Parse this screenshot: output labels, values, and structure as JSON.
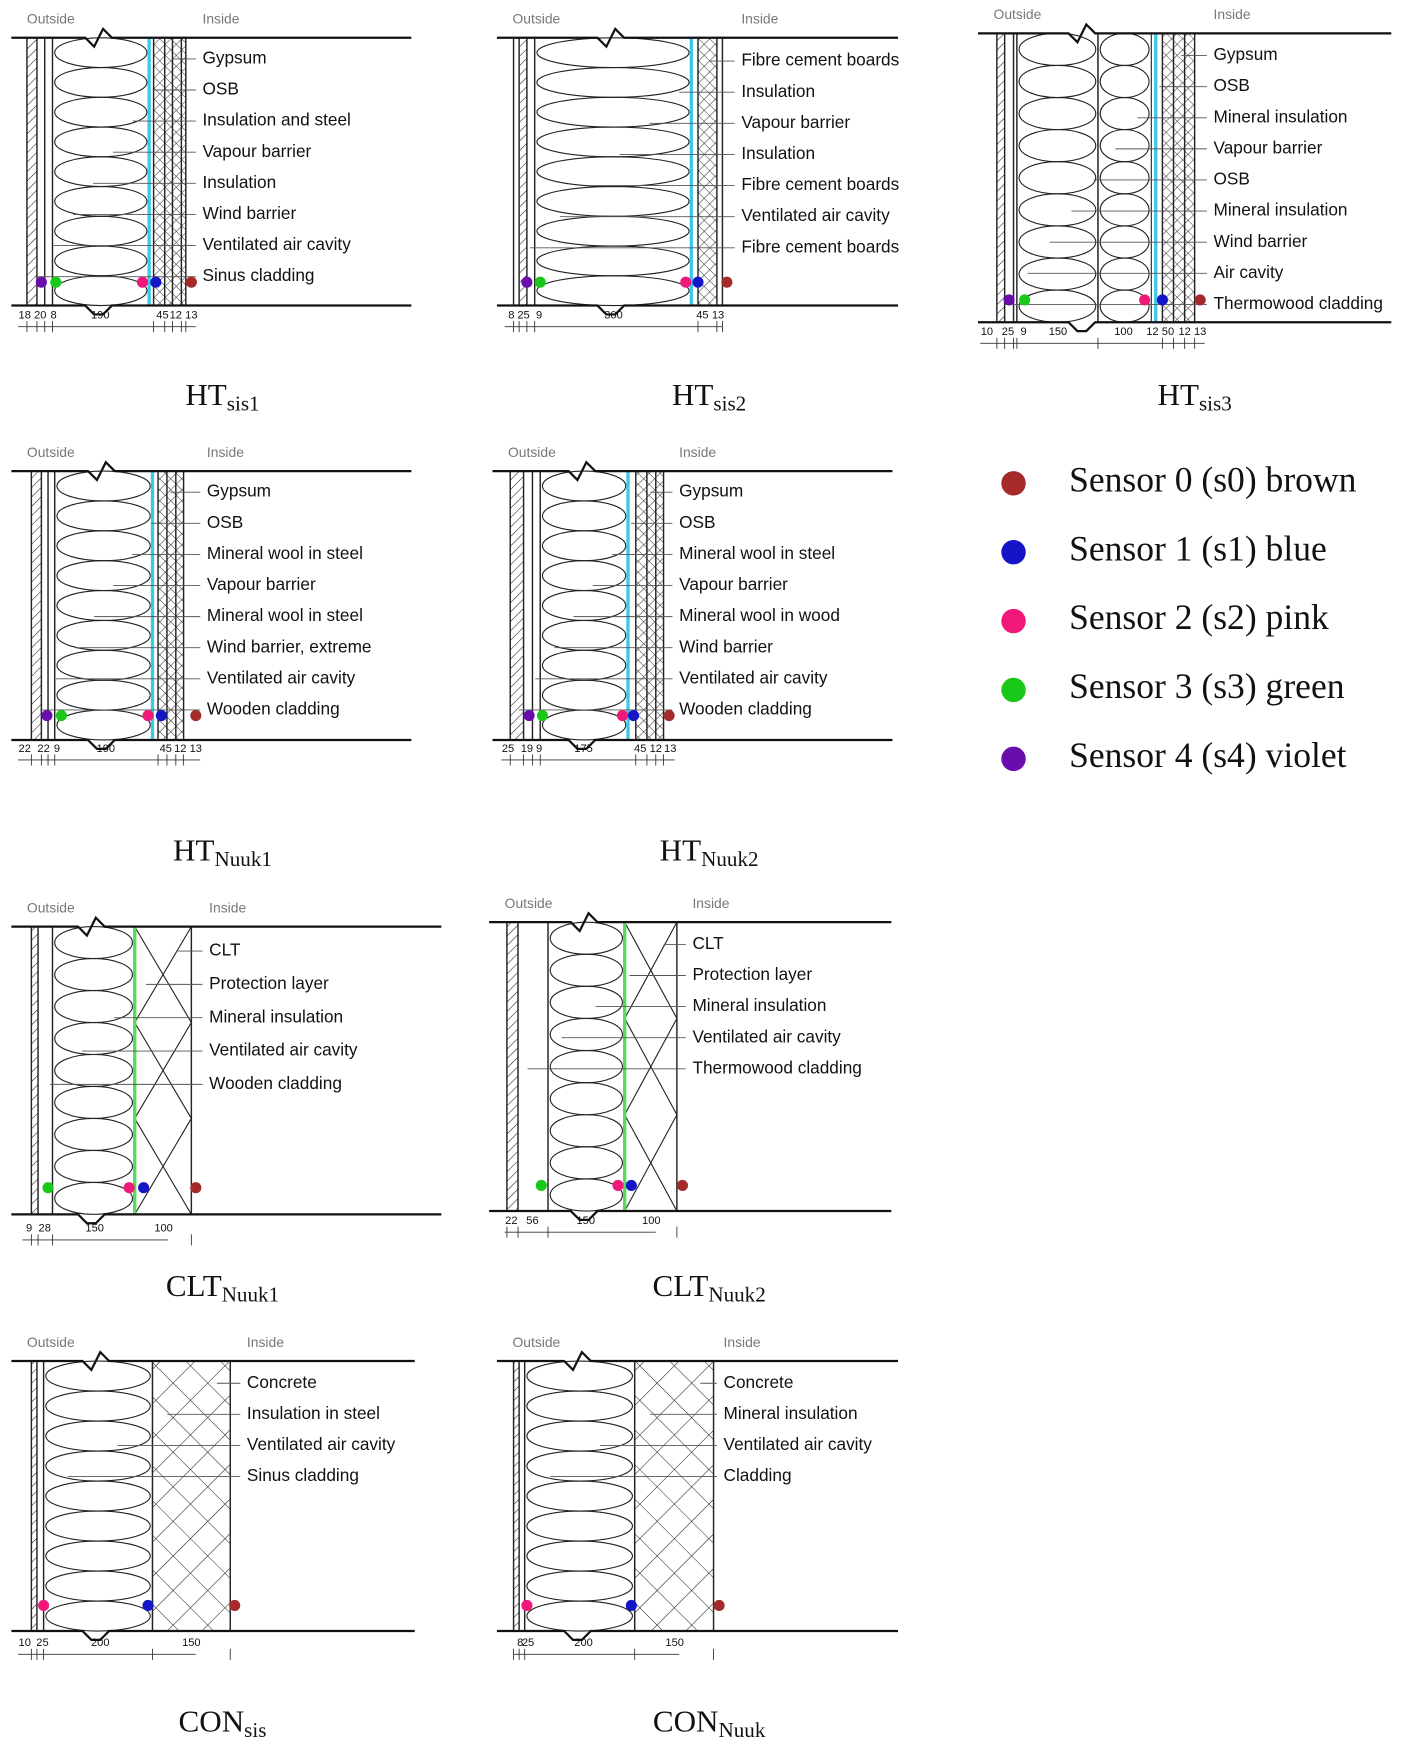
{
  "panels": [
    {
      "outside": "Outside",
      "inside": "Inside",
      "layers": [
        "Gypsum",
        "OSB",
        "Insulation and steel",
        "Vapour barrier",
        "Insulation",
        "Wind barrier",
        "Ventilated air cavity",
        "Sinus cladding"
      ],
      "dimensions": [
        18,
        20,
        8,
        190,
        45,
        12,
        13
      ],
      "caption": {
        "main": "HT",
        "sub": "sis1"
      }
    },
    {
      "outside": "Outside",
      "inside": "Inside",
      "layers": [
        "Fibre cement boards",
        "Insulation",
        "Vapour barrier",
        "Insulation",
        "Fibre cement boards",
        "Ventilated air cavity",
        "Fibre cement boards"
      ],
      "dimensions": [
        8,
        25,
        9,
        300,
        45,
        13
      ],
      "caption": {
        "main": "HT",
        "sub": "sis2"
      }
    },
    {
      "outside": "Outside",
      "inside": "Inside",
      "layers": [
        "Gypsum",
        "OSB",
        "Mineral insulation",
        "Vapour barrier",
        "OSB",
        "Mineral insulation",
        "Wind barrier",
        "Air cavity",
        "Thermowood cladding"
      ],
      "dimensions": [
        10,
        25,
        9,
        150,
        100,
        12,
        50,
        12,
        13
      ],
      "caption": {
        "main": "HT",
        "sub": "sis3"
      }
    },
    {
      "outside": "Outside",
      "inside": "Inside",
      "layers": [
        "Gypsum",
        "OSB",
        "Mineral wool in steel",
        "Vapour barrier",
        "Mineral wool in steel",
        "Wind barrier, extreme",
        "Ventilated air cavity",
        "Wooden cladding"
      ],
      "dimensions": [
        22,
        22,
        9,
        190,
        45,
        12,
        13
      ],
      "caption": {
        "main": "HT",
        "sub": "Nuuk1"
      }
    },
    {
      "outside": "Outside",
      "inside": "Inside",
      "layers": [
        "Gypsum",
        "OSB",
        "Mineral wool in steel",
        "Vapour barrier",
        "Mineral wool in wood",
        "Wind barrier",
        "Ventilated air cavity",
        "Wooden cladding"
      ],
      "dimensions": [
        25,
        19,
        9,
        175,
        45,
        12,
        13
      ],
      "caption": {
        "main": "HT",
        "sub": "Nuuk2"
      }
    },
    {
      "outside": "Outside",
      "inside": "Inside",
      "layers": [
        "CLT",
        "Protection layer",
        "Mineral insulation",
        "Ventilated air cavity",
        "Wooden cladding"
      ],
      "dimensions": [
        9,
        28,
        150,
        100
      ],
      "caption": {
        "main": "CLT",
        "sub": "Nuuk1"
      }
    },
    {
      "outside": "Outside",
      "inside": "Inside",
      "layers": [
        "CLT",
        "Protection layer",
        "Mineral insulation",
        "Ventilated air cavity",
        "Thermowood cladding"
      ],
      "dimensions": [
        22,
        56,
        150,
        100
      ],
      "caption": {
        "main": "CLT",
        "sub": "Nuuk2"
      }
    },
    {
      "outside": "Outside",
      "inside": "Inside",
      "layers": [
        "Concrete",
        "Insulation in steel",
        "Ventilated air cavity",
        "Sinus cladding"
      ],
      "dimensions": [
        10,
        25,
        200,
        150
      ],
      "caption": {
        "main": "CON",
        "sub": "sis"
      }
    },
    {
      "outside": "Outside",
      "inside": "Inside",
      "layers": [
        "Concrete",
        "Mineral insulation",
        "Ventilated air cavity",
        "Cladding"
      ],
      "dimensions": [
        8,
        25,
        200,
        150
      ],
      "caption": {
        "main": "CON",
        "sub": "Nuuk"
      }
    }
  ],
  "legend": {
    "items": [
      {
        "label": "Sensor 0 (s0) brown",
        "color": "#a52a2a"
      },
      {
        "label": "Sensor 1 (s1) blue",
        "color": "#1515c8"
      },
      {
        "label": "Sensor 2 (s2) pink",
        "color": "#f0197a"
      },
      {
        "label": "Sensor 3 (s3) green",
        "color": "#1ac81a"
      },
      {
        "label": "Sensor 4 (s4) violet",
        "color": "#6a0dad"
      }
    ]
  }
}
